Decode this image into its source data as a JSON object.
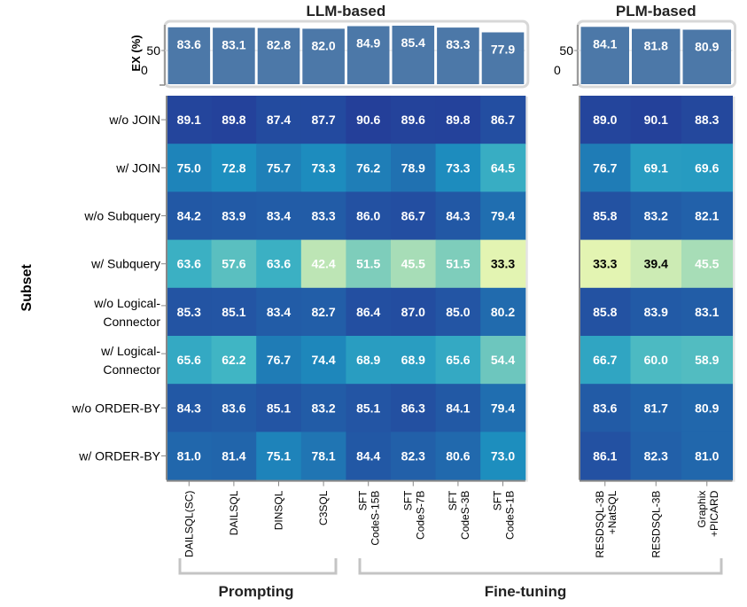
{
  "chart_data": {
    "type": "heatmap",
    "panels": [
      {
        "title": "LLM-based",
        "methods": [
          "DAILSQL(SC)",
          "DAILSQL",
          "DINSQL",
          "C3SQL",
          "SFT\nCodeS-15B",
          "SFT\nCodeS-7B",
          "SFT\nCodeS-3B",
          "SFT\nCodeS-1B"
        ],
        "ex_overall": [
          83.6,
          83.1,
          82.8,
          82.0,
          84.9,
          85.4,
          83.3,
          77.9
        ],
        "values": [
          [
            89.1,
            89.8,
            87.4,
            87.7,
            90.6,
            89.6,
            89.8,
            86.7
          ],
          [
            75.0,
            72.8,
            75.7,
            73.3,
            76.2,
            78.9,
            73.3,
            64.5
          ],
          [
            84.2,
            83.9,
            83.4,
            83.3,
            86.0,
            86.7,
            84.3,
            79.4
          ],
          [
            63.6,
            57.6,
            63.6,
            42.4,
            51.5,
            45.5,
            51.5,
            33.3
          ],
          [
            85.3,
            85.1,
            83.4,
            82.7,
            86.4,
            87.0,
            85.0,
            80.2
          ],
          [
            65.6,
            62.2,
            76.7,
            74.4,
            68.9,
            68.9,
            65.6,
            54.4
          ],
          [
            84.3,
            83.6,
            85.1,
            83.2,
            85.1,
            86.3,
            84.1,
            79.4
          ],
          [
            81.0,
            81.4,
            75.1,
            78.1,
            84.4,
            82.3,
            80.6,
            73.0
          ]
        ]
      },
      {
        "title": "PLM-based",
        "methods": [
          "RESDSQL-3B\n+NatSQL",
          "RESDSQL-3B",
          "Graphix\n+PICARD"
        ],
        "ex_overall": [
          84.1,
          81.8,
          80.9
        ],
        "values": [
          [
            89.0,
            90.1,
            88.3
          ],
          [
            76.7,
            69.1,
            69.6
          ],
          [
            85.8,
            83.2,
            82.1
          ],
          [
            33.3,
            39.4,
            45.5
          ],
          [
            85.8,
            83.9,
            83.1
          ],
          [
            66.7,
            60.0,
            58.9
          ],
          [
            83.6,
            81.7,
            80.9
          ],
          [
            86.1,
            82.3,
            81.0
          ]
        ]
      }
    ],
    "subsets": [
      "w/o JOIN",
      "w/ JOIN",
      "w/o Subquery",
      "w/ Subquery",
      "w/o Logical-\nConnector",
      "w/ Logical-\nConnector",
      "w/o ORDER-BY",
      "w/ ORDER-BY"
    ],
    "ylabel": "Subset",
    "bar_ylabel": "EX (%)",
    "bar_yticks": [
      0,
      50
    ],
    "bar_ylim": [
      0,
      100
    ],
    "color_scale": "YlGnBu",
    "color_domain": [
      30,
      92
    ],
    "dark_text_threshold": 40,
    "method_groups": [
      {
        "label": "Prompting",
        "from_panel": 0,
        "from": 0,
        "to": 3
      },
      {
        "label": "Fine-tuning",
        "from_panel": 0,
        "from": 4,
        "to_panel": 1,
        "to": 2
      }
    ],
    "bar_color": "#4c78a8"
  }
}
